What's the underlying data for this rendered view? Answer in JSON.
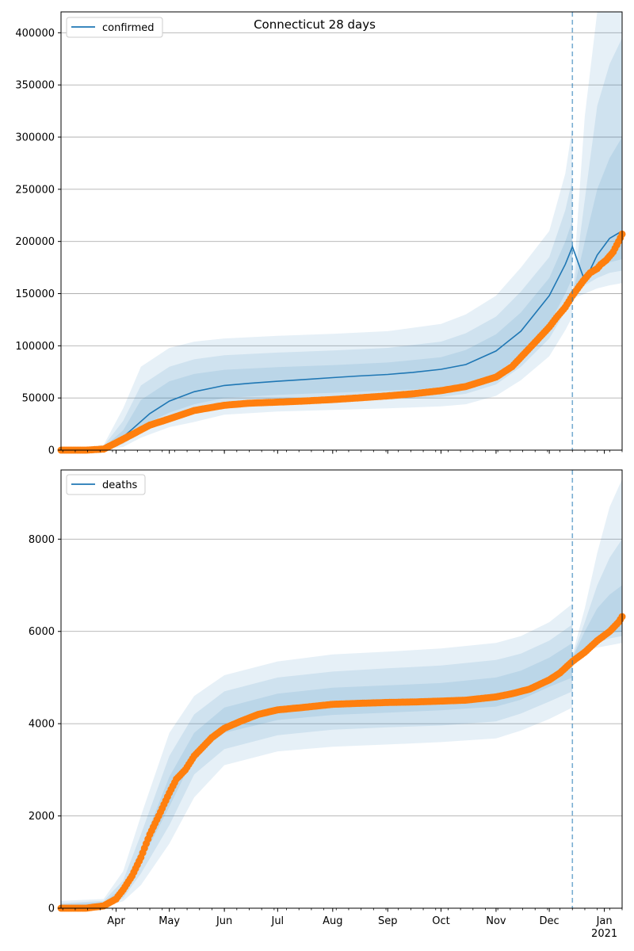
{
  "figure_title": "Connecticut 28 days",
  "colors": {
    "model_line": "#1f77b4",
    "observed_points": "#ff7f0e",
    "band": "#1f77b4",
    "forecast_line": "#1f77b4",
    "grid": "#b0b0b0"
  },
  "x_axis": {
    "month_labels": [
      "Apr",
      "May",
      "Jun",
      "Jul",
      "Aug",
      "Sep",
      "Oct",
      "Nov",
      "Dec",
      "Jan"
    ],
    "year_label": "2021",
    "forecast_start": "2020-12-14"
  },
  "chart_data": [
    {
      "type": "line",
      "panel": "top",
      "legend": "confirmed",
      "legend_position": "top-left",
      "grid": "horizontal",
      "x_range": [
        "2020-03-01",
        "2021-01-11"
      ],
      "ylim": [
        0,
        420000
      ],
      "y_ticks": [
        "0",
        "50000",
        "100000",
        "150000",
        "200000",
        "250000",
        "300000",
        "350000",
        "400000"
      ],
      "model": {
        "name": "confirmed",
        "x": [
          "2020-03-01",
          "2020-03-25",
          "2020-04-01",
          "2020-04-10",
          "2020-04-20",
          "2020-05-01",
          "2020-05-15",
          "2020-06-01",
          "2020-06-15",
          "2020-07-01",
          "2020-07-15",
          "2020-08-01",
          "2020-08-15",
          "2020-09-01",
          "2020-09-15",
          "2020-10-01",
          "2020-10-15",
          "2020-11-01",
          "2020-11-15",
          "2020-12-01",
          "2020-12-10",
          "2020-12-14",
          "2020-12-21",
          "2020-12-28",
          "2021-01-04",
          "2021-01-11"
        ],
        "y": [
          0,
          2000,
          7000,
          20000,
          35000,
          47000,
          56000,
          62000,
          64000,
          66000,
          67500,
          69500,
          71000,
          72500,
          74500,
          77500,
          82000,
          95000,
          114000,
          148000,
          178000,
          195000,
          162000,
          187000,
          203000,
          210000
        ]
      },
      "bands": [
        {
          "x": [
            "2020-03-01",
            "2020-03-25",
            "2020-04-05",
            "2020-04-15",
            "2020-05-01",
            "2020-05-15",
            "2020-06-01",
            "2020-07-01",
            "2020-08-01",
            "2020-09-01",
            "2020-10-01",
            "2020-10-15",
            "2020-11-01",
            "2020-11-15",
            "2020-12-01",
            "2020-12-10",
            "2020-12-14"
          ],
          "low": [
            0,
            500,
            3000,
            12000,
            22000,
            27000,
            34000,
            37000,
            38500,
            40000,
            42000,
            44000,
            52000,
            67000,
            90000,
            115000,
            128000
          ],
          "high": [
            0,
            5000,
            40000,
            80000,
            98000,
            104000,
            107000,
            109500,
            111500,
            114000,
            121000,
            130000,
            148000,
            175000,
            210000,
            265000,
            310000
          ]
        },
        {
          "x": [
            "2020-03-01",
            "2020-03-25",
            "2020-04-05",
            "2020-04-15",
            "2020-05-01",
            "2020-05-15",
            "2020-06-01",
            "2020-07-01",
            "2020-08-01",
            "2020-09-01",
            "2020-10-01",
            "2020-10-15",
            "2020-11-01",
            "2020-11-15",
            "2020-12-01",
            "2020-12-10",
            "2020-12-14"
          ],
          "low": [
            0,
            1000,
            6000,
            17000,
            29000,
            35000,
            42000,
            45000,
            47000,
            48500,
            51000,
            54000,
            63000,
            80000,
            107000,
            133000,
            150000
          ],
          "high": [
            0,
            4000,
            28000,
            62000,
            80000,
            87000,
            91000,
            93500,
            95500,
            98000,
            104000,
            112000,
            128000,
            152000,
            185000,
            230000,
            260000
          ]
        },
        {
          "x": [
            "2020-03-01",
            "2020-03-25",
            "2020-04-05",
            "2020-04-15",
            "2020-05-01",
            "2020-05-15",
            "2020-06-01",
            "2020-07-01",
            "2020-08-01",
            "2020-09-01",
            "2020-10-01",
            "2020-10-15",
            "2020-11-01",
            "2020-11-15",
            "2020-12-01",
            "2020-12-10",
            "2020-12-14"
          ],
          "low": [
            0,
            1500,
            9000,
            23000,
            36000,
            44000,
            50000,
            53000,
            55000,
            57000,
            59500,
            63000,
            73500,
            91000,
            121000,
            150000,
            165000
          ],
          "high": [
            0,
            3000,
            19000,
            48000,
            66000,
            73000,
            77000,
            79500,
            81500,
            84000,
            89000,
            96000,
            111000,
            132000,
            165000,
            200000,
            220000
          ]
        },
        {
          "x": [
            "2020-12-14",
            "2020-12-21",
            "2020-12-28",
            "2021-01-04",
            "2021-01-11"
          ],
          "low": [
            145000,
            150000,
            155000,
            158000,
            160000
          ],
          "high": [
            150000,
            320000,
            420000,
            420000,
            420000
          ]
        },
        {
          "x": [
            "2020-12-14",
            "2020-12-21",
            "2020-12-28",
            "2021-01-04",
            "2021-01-11"
          ],
          "low": [
            147000,
            158000,
            165000,
            170000,
            172000
          ],
          "high": [
            148000,
            240000,
            330000,
            370000,
            395000
          ]
        },
        {
          "x": [
            "2020-12-14",
            "2020-12-21",
            "2020-12-28",
            "2021-01-04",
            "2021-01-11"
          ],
          "low": [
            148000,
            166000,
            175000,
            180000,
            183000
          ],
          "high": [
            148000,
            200000,
            250000,
            280000,
            300000
          ]
        }
      ],
      "observed": {
        "x": [
          "2020-03-01",
          "2020-03-15",
          "2020-03-25",
          "2020-04-01",
          "2020-04-10",
          "2020-04-20",
          "2020-05-01",
          "2020-05-15",
          "2020-06-01",
          "2020-06-15",
          "2020-07-01",
          "2020-07-15",
          "2020-08-01",
          "2020-08-15",
          "2020-09-01",
          "2020-09-15",
          "2020-10-01",
          "2020-10-15",
          "2020-11-01",
          "2020-11-10",
          "2020-11-20",
          "2020-12-01",
          "2020-12-05",
          "2020-12-10",
          "2020-12-14",
          "2020-12-20",
          "2020-12-24",
          "2020-12-28",
          "2020-12-30",
          "2021-01-02",
          "2021-01-06",
          "2021-01-09",
          "2021-01-11"
        ],
        "y": [
          0,
          0,
          1000,
          7000,
          15000,
          24000,
          30000,
          38000,
          43000,
          45000,
          46000,
          47000,
          48500,
          50000,
          52000,
          54000,
          57000,
          61000,
          70000,
          80000,
          98000,
          118000,
          127000,
          137000,
          148000,
          162000,
          170000,
          174000,
          178000,
          182000,
          190000,
          200000,
          207000
        ]
      }
    },
    {
      "type": "line",
      "panel": "bottom",
      "legend": "deaths",
      "legend_position": "top-left",
      "grid": "horizontal",
      "x_range": [
        "2020-03-01",
        "2021-01-11"
      ],
      "ylim": [
        0,
        9500
      ],
      "y_ticks": [
        "0",
        "2000",
        "4000",
        "6000",
        "8000"
      ],
      "bands": [
        {
          "x": [
            "2020-03-01",
            "2020-03-25",
            "2020-04-05",
            "2020-04-15",
            "2020-05-01",
            "2020-05-15",
            "2020-06-01",
            "2020-07-01",
            "2020-08-01",
            "2020-09-01",
            "2020-10-01",
            "2020-11-01",
            "2020-11-15",
            "2020-12-01",
            "2020-12-14"
          ],
          "low": [
            0,
            30,
            150,
            500,
            1400,
            2400,
            3100,
            3400,
            3500,
            3550,
            3600,
            3680,
            3850,
            4100,
            4350
          ],
          "high": [
            160,
            200,
            800,
            2000,
            3800,
            4600,
            5050,
            5350,
            5500,
            5560,
            5630,
            5750,
            5900,
            6200,
            6600
          ]
        },
        {
          "x": [
            "2020-03-01",
            "2020-03-25",
            "2020-04-05",
            "2020-04-15",
            "2020-05-01",
            "2020-05-15",
            "2020-06-01",
            "2020-07-01",
            "2020-08-01",
            "2020-09-01",
            "2020-10-01",
            "2020-11-01",
            "2020-11-15",
            "2020-12-01",
            "2020-12-14"
          ],
          "low": [
            0,
            60,
            220,
            750,
            1800,
            2900,
            3450,
            3750,
            3870,
            3920,
            3960,
            4050,
            4220,
            4480,
            4700
          ],
          "high": [
            110,
            160,
            600,
            1600,
            3300,
            4200,
            4700,
            5000,
            5130,
            5200,
            5260,
            5380,
            5520,
            5800,
            6150
          ]
        },
        {
          "x": [
            "2020-03-01",
            "2020-03-25",
            "2020-04-05",
            "2020-04-15",
            "2020-05-01",
            "2020-05-15",
            "2020-06-01",
            "2020-07-01",
            "2020-08-01",
            "2020-09-01",
            "2020-10-01",
            "2020-11-01",
            "2020-11-15",
            "2020-12-01",
            "2020-12-14"
          ],
          "low": [
            0,
            80,
            300,
            1000,
            2200,
            3300,
            3800,
            4080,
            4190,
            4240,
            4290,
            4370,
            4520,
            4800,
            5000
          ],
          "high": [
            80,
            130,
            450,
            1300,
            2850,
            3800,
            4350,
            4650,
            4780,
            4830,
            4880,
            5000,
            5150,
            5430,
            5750
          ]
        },
        {
          "x": [
            "2020-12-14",
            "2020-12-21",
            "2020-12-28",
            "2021-01-04",
            "2021-01-11"
          ],
          "low": [
            5300,
            5550,
            5650,
            5700,
            5750
          ],
          "high": [
            5500,
            6500,
            7700,
            8700,
            9300
          ]
        },
        {
          "x": [
            "2020-12-14",
            "2020-12-21",
            "2020-12-28",
            "2021-01-04",
            "2021-01-11"
          ],
          "low": [
            5350,
            5600,
            5750,
            5850,
            5900
          ],
          "high": [
            5450,
            6200,
            7000,
            7600,
            8000
          ]
        },
        {
          "x": [
            "2020-12-14",
            "2020-12-21",
            "2020-12-28",
            "2021-01-04",
            "2021-01-11"
          ],
          "low": [
            5380,
            5650,
            5850,
            5950,
            6000
          ],
          "high": [
            5420,
            6000,
            6500,
            6800,
            7000
          ]
        }
      ],
      "observed": {
        "x": [
          "2020-03-01",
          "2020-03-15",
          "2020-03-25",
          "2020-04-01",
          "2020-04-05",
          "2020-04-10",
          "2020-04-15",
          "2020-04-20",
          "2020-04-25",
          "2020-05-01",
          "2020-05-05",
          "2020-05-10",
          "2020-05-15",
          "2020-05-20",
          "2020-05-25",
          "2020-06-01",
          "2020-06-10",
          "2020-06-20",
          "2020-07-01",
          "2020-07-15",
          "2020-08-01",
          "2020-08-15",
          "2020-09-01",
          "2020-09-15",
          "2020-10-01",
          "2020-10-15",
          "2020-11-01",
          "2020-11-10",
          "2020-11-20",
          "2020-12-01",
          "2020-12-07",
          "2020-12-14",
          "2020-12-21",
          "2020-12-28",
          "2021-01-04",
          "2021-01-09",
          "2021-01-11"
        ],
        "y": [
          0,
          0,
          50,
          200,
          400,
          700,
          1100,
          1600,
          2000,
          2500,
          2800,
          3000,
          3300,
          3500,
          3700,
          3900,
          4050,
          4200,
          4300,
          4350,
          4420,
          4440,
          4460,
          4470,
          4490,
          4510,
          4580,
          4650,
          4750,
          4950,
          5100,
          5350,
          5550,
          5800,
          6000,
          6200,
          6320
        ]
      }
    }
  ]
}
